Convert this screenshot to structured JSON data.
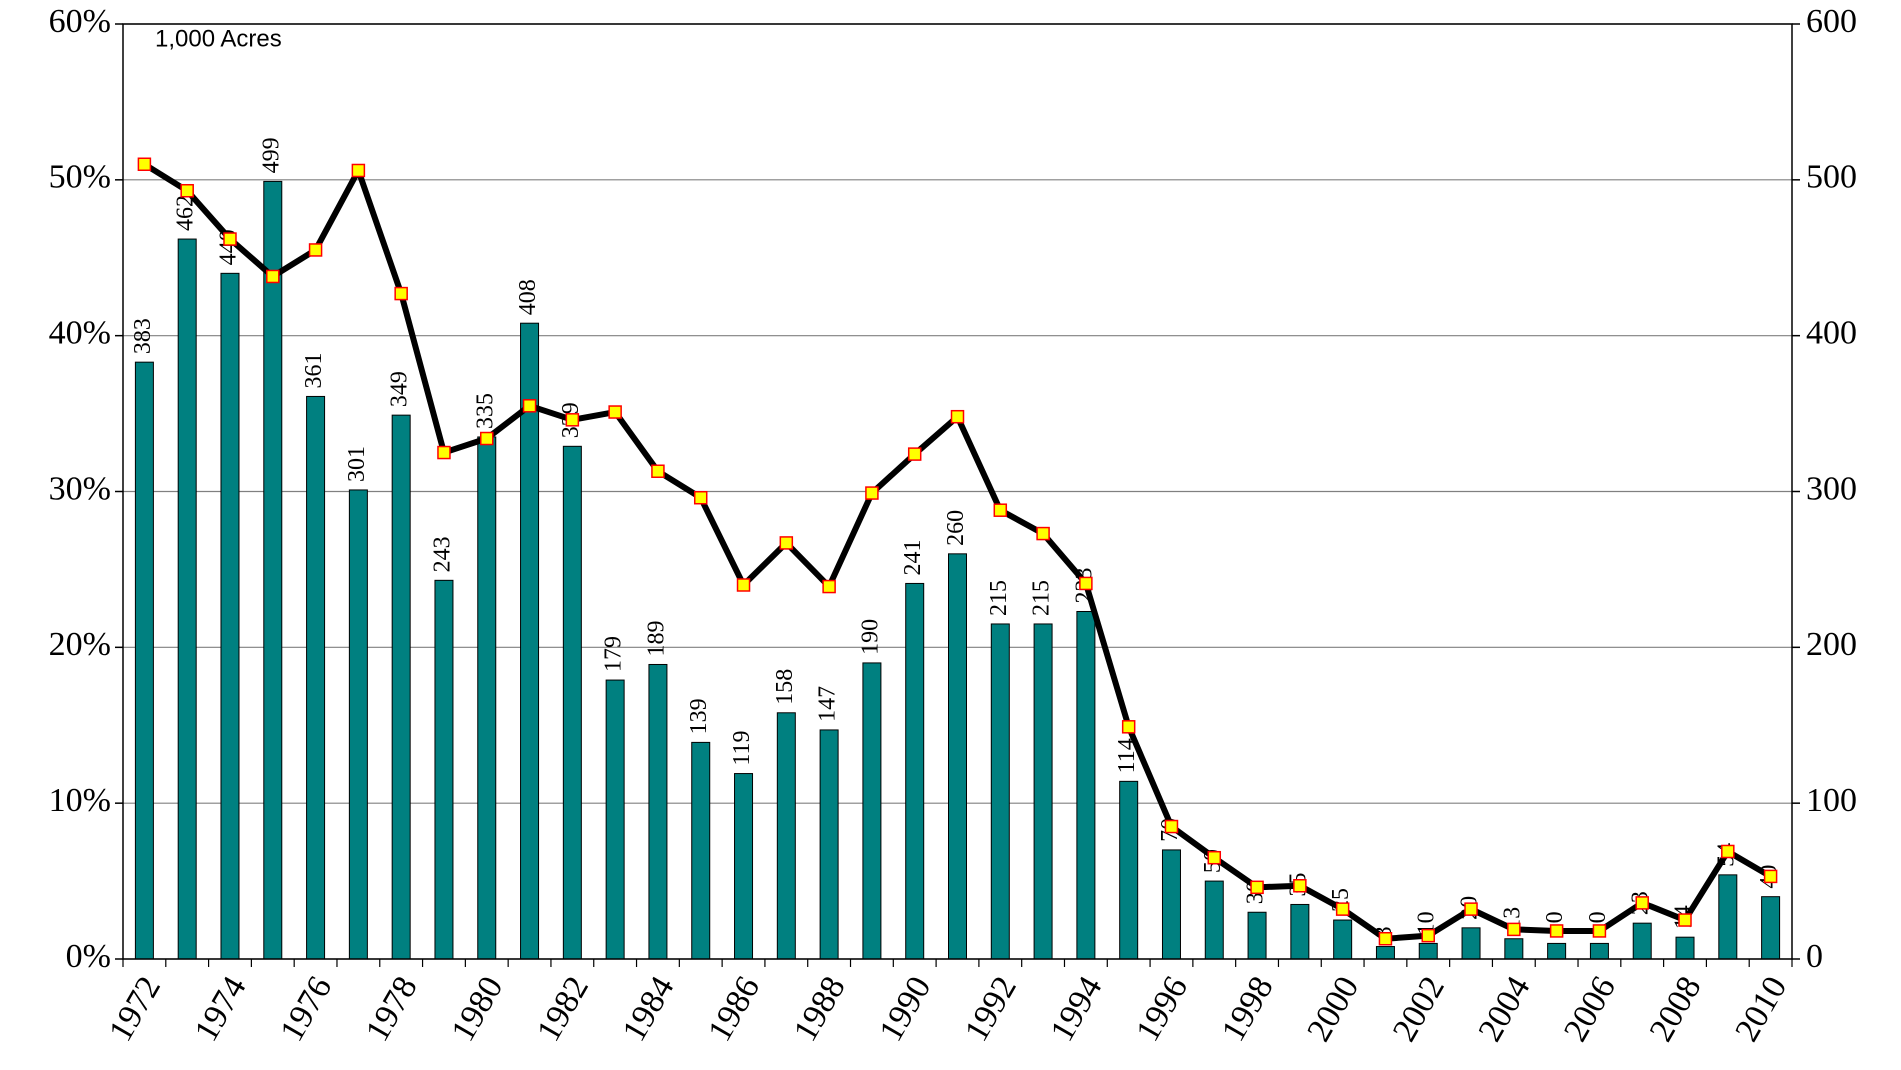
{
  "chart_data": {
    "type": "bar",
    "annotation": "1,000 Acres",
    "categories": [
      "1972",
      null,
      "1974",
      null,
      "1976",
      null,
      "1978",
      null,
      "1980",
      null,
      "1982",
      null,
      "1984",
      null,
      "1986",
      null,
      "1988",
      null,
      "1990",
      null,
      "1992",
      null,
      "1994",
      null,
      "1996",
      null,
      "1998",
      null,
      "2000",
      null,
      "2002",
      null,
      "2004",
      null,
      "2006",
      null,
      "2008",
      null,
      "2010"
    ],
    "series": [
      {
        "type": "bar",
        "axis": "y2",
        "color": "#008080",
        "values": [
          383,
          462,
          440,
          499,
          361,
          301,
          349,
          243,
          335,
          408,
          329,
          179,
          189,
          139,
          119,
          158,
          147,
          190,
          241,
          260,
          215,
          215,
          223,
          114,
          70,
          50,
          30,
          35,
          25,
          8,
          10,
          20,
          13,
          10,
          10,
          23,
          14,
          54,
          40
        ]
      },
      {
        "type": "line",
        "axis": "y",
        "color": "#000000",
        "marker_color": "#ffff00",
        "marker_edge": "#ff0000",
        "values": [
          51,
          49.3,
          46.2,
          43.8,
          45.5,
          50.6,
          42.7,
          32.5,
          33.4,
          35.5,
          34.6,
          35.1,
          31.3,
          29.6,
          24,
          26.7,
          23.9,
          29.9,
          32.4,
          34.8,
          28.8,
          27.3,
          24.1,
          14.9,
          8.5,
          6.5,
          4.6,
          4.7,
          3.2,
          1.3,
          1.5,
          3.2,
          1.9,
          1.8,
          1.8,
          3.6,
          2.5,
          6.9,
          5.3
        ]
      }
    ],
    "ylim": [
      0,
      60
    ],
    "yticks": [
      {
        "value": 0,
        "label": "0%"
      },
      {
        "value": 10,
        "label": "10%"
      },
      {
        "value": 20,
        "label": "20%"
      },
      {
        "value": 30,
        "label": "30%"
      },
      {
        "value": 40,
        "label": "40%"
      },
      {
        "value": 50,
        "label": "50%"
      },
      {
        "value": 60,
        "label": "60%"
      }
    ],
    "y2lim": [
      0,
      600
    ],
    "y2ticks": [
      0,
      100,
      200,
      300,
      400,
      500,
      600
    ],
    "grid": true
  }
}
